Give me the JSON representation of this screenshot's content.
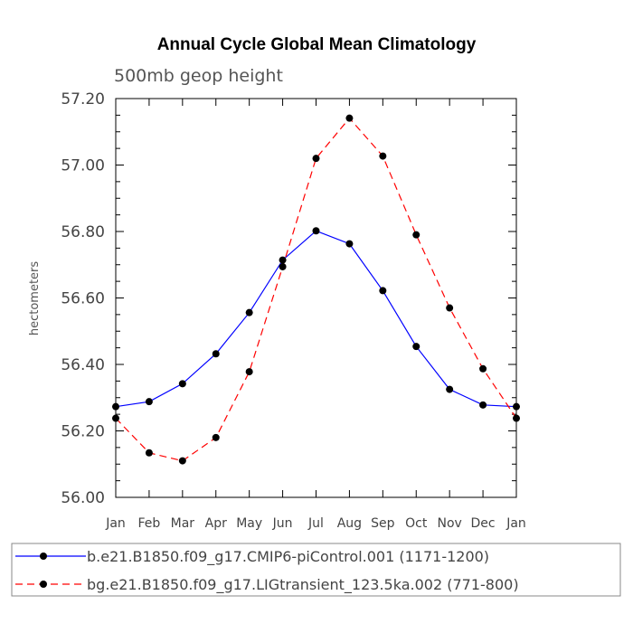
{
  "chart_data": {
    "type": "line",
    "title": "Annual Cycle Global Mean Climatology",
    "subtitle": "500mb geop height",
    "xlabel": "",
    "ylabel": "hectometers",
    "categories": [
      "Jan",
      "Feb",
      "Mar",
      "Apr",
      "May",
      "Jun",
      "Jul",
      "Aug",
      "Sep",
      "Oct",
      "Nov",
      "Dec",
      "Jan"
    ],
    "ylim": [
      56.0,
      57.2
    ],
    "yticks": [
      "56.00",
      "56.20",
      "56.40",
      "56.60",
      "56.80",
      "57.00",
      "57.20"
    ],
    "series": [
      {
        "name": "b.e21.B1850.f09_g17.CMIP6-piControl.001 (1171-1200)",
        "color": "#0000ff",
        "dash": "solid",
        "values": [
          56.273,
          56.288,
          56.342,
          56.432,
          56.556,
          56.714,
          56.802,
          56.763,
          56.622,
          56.454,
          56.325,
          56.278,
          56.273
        ]
      },
      {
        "name": "bg.e21.B1850.f09_g17.LIGtransient_123.5ka.002 (771-800)",
        "color": "#ff0000",
        "dash": "dashed",
        "values": [
          56.238,
          56.134,
          56.11,
          56.18,
          56.378,
          56.694,
          57.02,
          57.141,
          57.027,
          56.79,
          56.57,
          56.387,
          56.238
        ]
      }
    ],
    "marker_color": "#000000",
    "legend_position": "bottom"
  }
}
